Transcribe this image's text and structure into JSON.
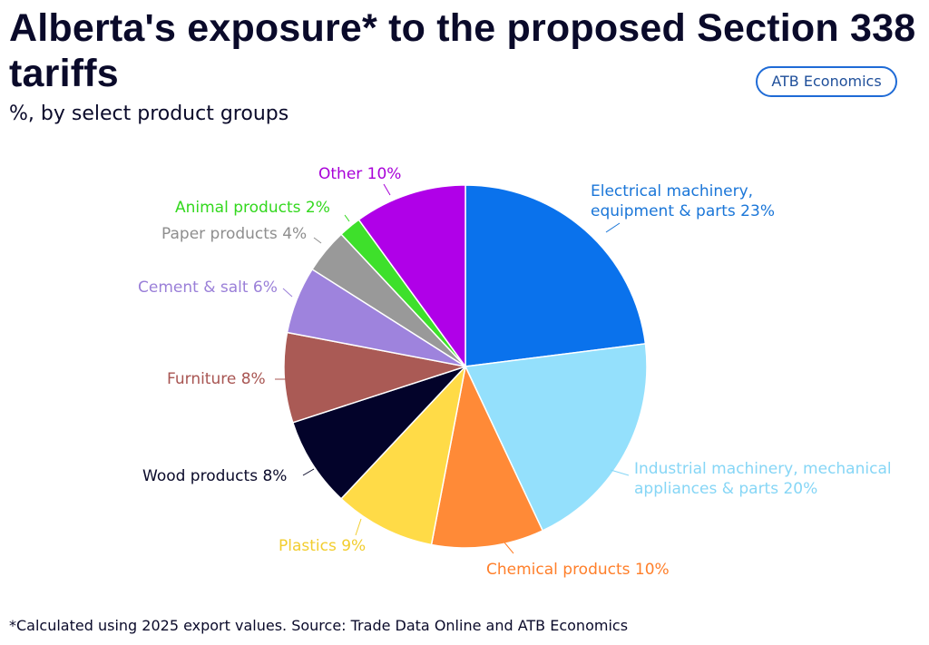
{
  "header": {
    "title": "Alberta's exposure* to the proposed Section 338 tariffs",
    "subtitle": "%, by select product groups",
    "brand": "ATB Economics"
  },
  "footer": {
    "footnote": "*Calculated using 2025 export values. Source: Trade Data Online and ATB Economics"
  },
  "chart_data": {
    "type": "pie",
    "title": "Alberta's exposure* to the proposed Section 338 tariffs",
    "subtitle": "%, by select product groups",
    "slices": [
      {
        "label": "Electrical machinery, equipment & parts",
        "value": 23,
        "color": "#0a72ec"
      },
      {
        "label": "Industrial machinery, mechanical appliances & parts",
        "value": 20,
        "color": "#94e0fc"
      },
      {
        "label": "Chemical products",
        "value": 10,
        "color": "#ff8a37"
      },
      {
        "label": "Plastics",
        "value": 9,
        "color": "#ffdb47"
      },
      {
        "label": "Wood products",
        "value": 8,
        "color": "#03032a"
      },
      {
        "label": "Furniture",
        "value": 8,
        "color": "#aa5a55"
      },
      {
        "label": "Cement & salt",
        "value": 6,
        "color": "#9e83dd"
      },
      {
        "label": "Paper products",
        "value": 4,
        "color": "#999999"
      },
      {
        "label": "Animal products",
        "value": 2,
        "color": "#3ee02b"
      },
      {
        "label": "Other",
        "value": 10,
        "color": "#b000e8"
      }
    ],
    "labels": [
      {
        "lines": [
          "Electrical machinery,",
          "equipment & parts 23%"
        ],
        "color": "#1a76d8"
      },
      {
        "lines": [
          "Industrial machinery, mechanical",
          "appliances & parts 20%"
        ],
        "color": "#86d6f6"
      },
      {
        "lines": [
          "Chemical products 10%"
        ],
        "color": "#ff7f2a"
      },
      {
        "lines": [
          "Plastics 9%"
        ],
        "color": "#f2cd2e"
      },
      {
        "lines": [
          "Wood products 8%"
        ],
        "color": "#0a0a2a"
      },
      {
        "lines": [
          "Furniture 8%"
        ],
        "color": "#a85552"
      },
      {
        "lines": [
          "Cement & salt 6%"
        ],
        "color": "#9a7fd8"
      },
      {
        "lines": [
          "Paper products 4%"
        ],
        "color": "#8e8e8e"
      },
      {
        "lines": [
          "Animal products 2%"
        ],
        "color": "#33d81e"
      },
      {
        "lines": [
          "Other 10%"
        ],
        "color": "#a800d8"
      }
    ]
  }
}
